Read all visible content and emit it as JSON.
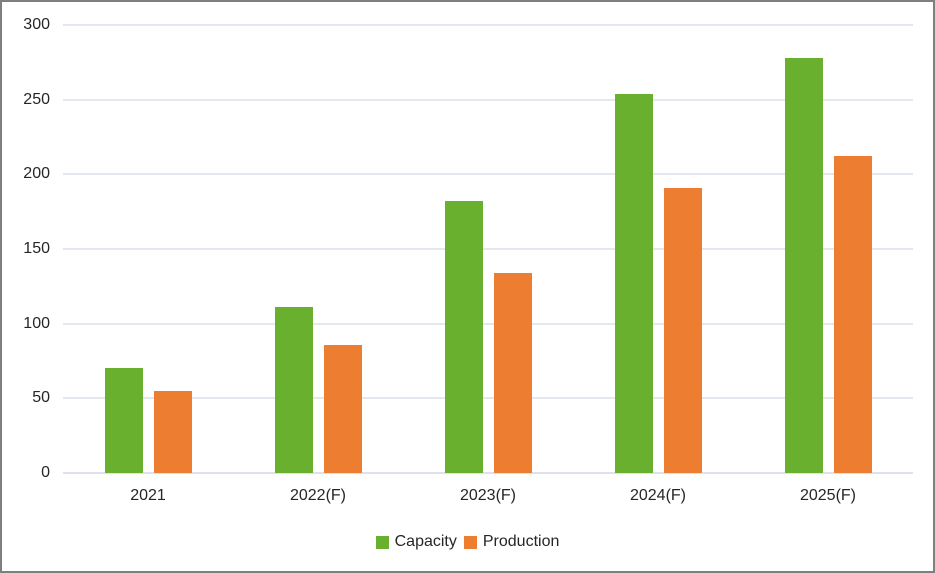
{
  "chart_data": {
    "type": "bar",
    "title": "",
    "xlabel": "",
    "ylabel": "",
    "categories": [
      "2021",
      "2022(F)",
      "2023(F)",
      "2024(F)",
      "2025(F)"
    ],
    "series": [
      {
        "name": "Capacity",
        "color": "#6ab02f",
        "values": [
          70,
          111,
          182,
          254,
          278
        ]
      },
      {
        "name": "Production",
        "color": "#ed7d31",
        "values": [
          55,
          86,
          134,
          191,
          212
        ]
      }
    ],
    "ylim": [
      0,
      300
    ],
    "yticks": [
      0,
      50,
      100,
      150,
      200,
      250,
      300
    ],
    "grid": true,
    "legend_position": "bottom"
  },
  "colors": {
    "gridline": "#e3e7ee",
    "axis_line": "#dee2e8",
    "text": "#262626",
    "frame_border": "#7f7f7f",
    "background": "#ffffff"
  }
}
